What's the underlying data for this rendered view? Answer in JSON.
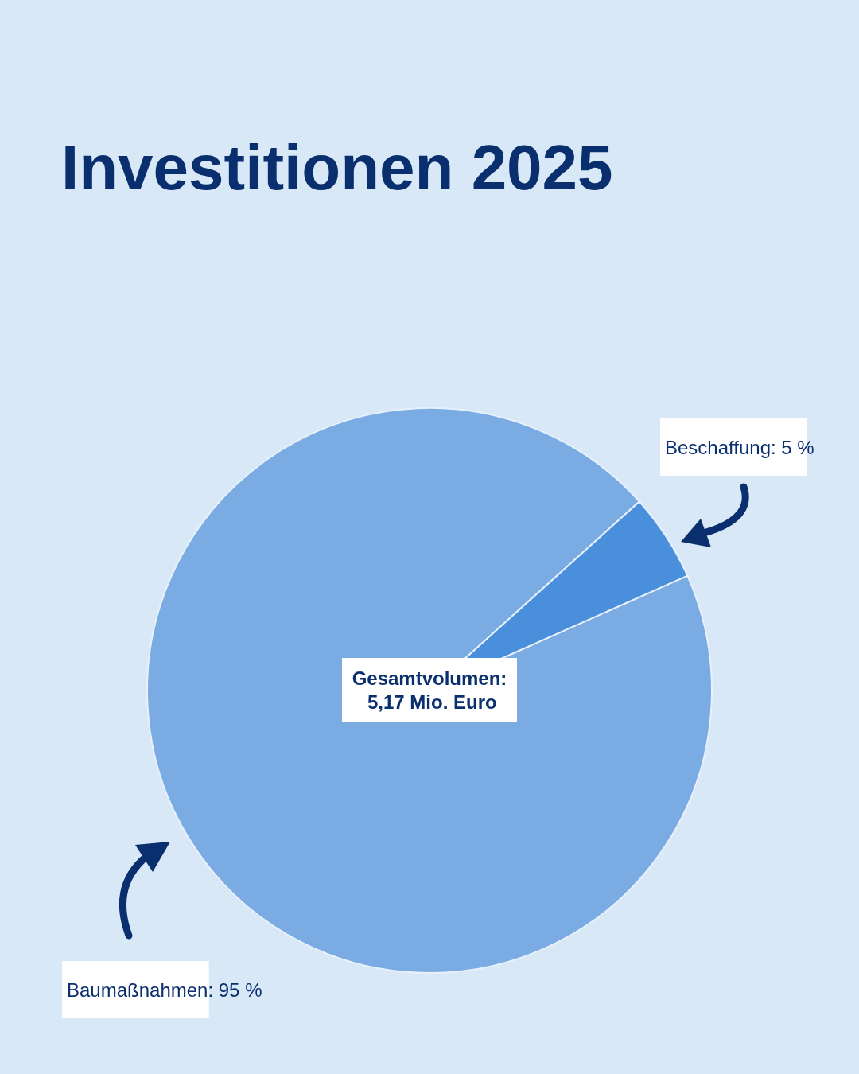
{
  "chart_data": {
    "type": "pie",
    "title": "Investitionen 2025",
    "categories": [
      "Baumaßnahmen",
      "Beschaffung"
    ],
    "values": [
      95,
      5
    ],
    "colors": [
      "#7aace3",
      "#4a8fdb"
    ],
    "value_labels": [
      "95 %",
      "5 %"
    ],
    "annotations": [
      "Gesamtvolumen: 5,17 Mio. Euro"
    ],
    "legend": false
  }
}
